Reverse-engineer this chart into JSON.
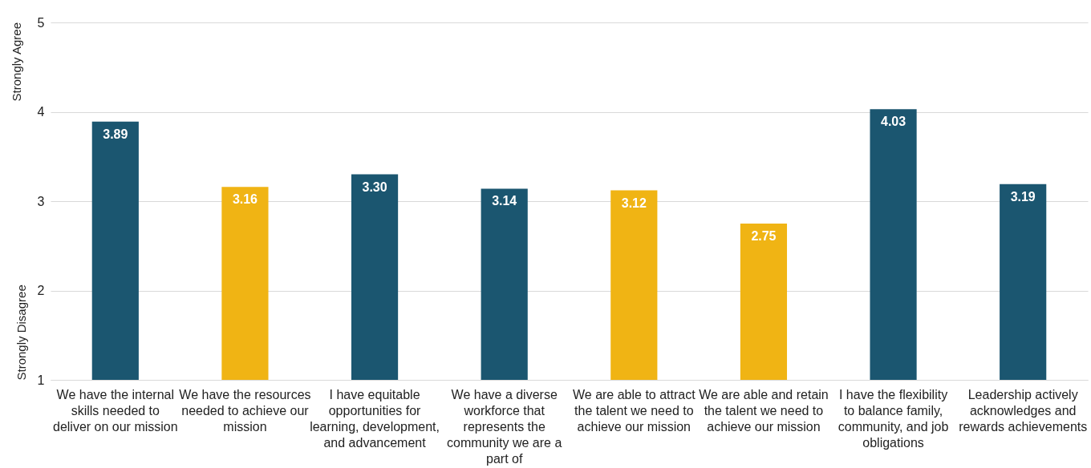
{
  "chart_data": {
    "type": "bar",
    "ylabel": "Strongly Disagree",
    "annotations": [
      "Strongly Agree"
    ],
    "categories": [
      "We have the internal skills needed to deliver on our mission",
      "We have the resources needed to achieve our mission",
      "I have equitable opportunities for learning, development, and advancement",
      "We have a diverse workforce that represents the community we are a part of",
      "We are able to attract the talent we need to achieve our mission",
      "We are able and retain the talent we need to achieve our mission",
      "I have the flexibility to balance family, community, and job obligations",
      "Leadership actively acknowledges and rewards achievements"
    ],
    "values": [
      3.89,
      3.16,
      3.3,
      3.14,
      3.12,
      2.75,
      4.03,
      3.19
    ],
    "value_labels": [
      "3.89",
      "3.16",
      "3.30",
      "3.14",
      "3.12",
      "2.75",
      "4.03",
      "3.19"
    ],
    "colors": [
      "#1b5670",
      "#f0b414",
      "#1b5670",
      "#1b5670",
      "#f0b414",
      "#f0b414",
      "#1b5670",
      "#1b5670"
    ],
    "ylim": [
      1,
      5
    ],
    "yticks": [
      1,
      2,
      3,
      4,
      5
    ],
    "grid": "y"
  }
}
